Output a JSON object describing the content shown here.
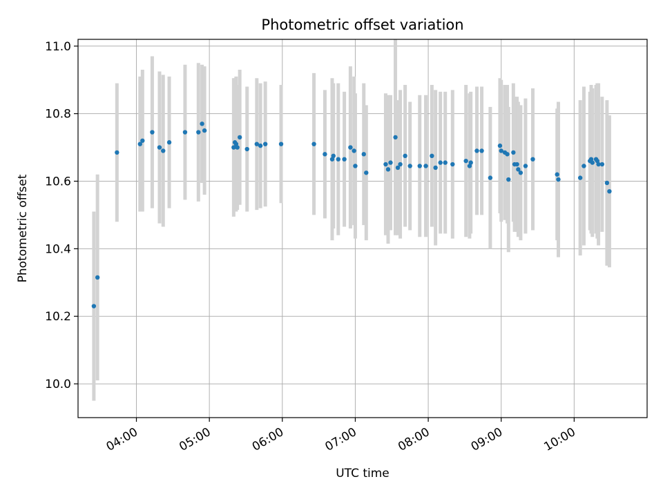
{
  "chart_data": {
    "type": "scatter",
    "title": "Photometric offset variation",
    "xlabel": "UTC time",
    "ylabel": "Photometric offset",
    "x_ticks": [
      "04:00",
      "05:00",
      "06:00",
      "07:00",
      "08:00",
      "09:00",
      "10:00"
    ],
    "y_ticks": [
      "10.0",
      "10.2",
      "10.4",
      "10.6",
      "10.8",
      "11.0"
    ],
    "xlim": [
      "03:12",
      "11:00"
    ],
    "ylim": [
      9.9,
      11.02
    ],
    "grid": true,
    "colors": {
      "point": "#1f77b4",
      "errorbar": "#d3d3d3",
      "grid": "#b0b0b0"
    },
    "series": [
      {
        "x": [
          "03:25",
          "03:28",
          "03:44",
          "04:03",
          "04:05",
          "04:13",
          "04:19",
          "04:22",
          "04:27",
          "04:40",
          "04:51",
          "04:54",
          "04:56",
          "05:20",
          "05:21",
          "05:22",
          "05:23",
          "05:25",
          "05:31",
          "05:39",
          "05:42",
          "05:46",
          "05:59",
          "06:26",
          "06:35",
          "06:41",
          "06:42",
          "06:46",
          "06:51",
          "06:56",
          "06:59",
          "07:00",
          "07:07",
          "07:09",
          "07:25",
          "07:27",
          "07:29",
          "07:33",
          "07:35",
          "07:37",
          "07:41",
          "07:45",
          "07:53",
          "07:58",
          "08:03",
          "08:06",
          "08:10",
          "08:14",
          "08:20",
          "08:31",
          "08:34",
          "08:35",
          "08:40",
          "08:44",
          "08:51",
          "08:59",
          "09:00",
          "09:03",
          "09:05",
          "09:06",
          "09:10",
          "09:11",
          "09:13",
          "09:14",
          "09:16",
          "09:20",
          "09:26",
          "09:46",
          "09:47",
          "10:05",
          "10:08",
          "10:13",
          "10:14",
          "10:15",
          "10:18",
          "10:19",
          "10:20",
          "10:23",
          "10:27",
          "10:29"
        ],
        "y": [
          10.23,
          10.315,
          10.685,
          10.71,
          10.72,
          10.745,
          10.7,
          10.69,
          10.715,
          10.745,
          10.745,
          10.77,
          10.75,
          10.7,
          10.715,
          10.71,
          10.7,
          10.73,
          10.695,
          10.71,
          10.705,
          10.71,
          10.71,
          10.71,
          10.68,
          10.665,
          10.675,
          10.665,
          10.665,
          10.7,
          10.69,
          10.645,
          10.68,
          10.625,
          10.65,
          10.635,
          10.655,
          10.73,
          10.64,
          10.65,
          10.675,
          10.645,
          10.645,
          10.645,
          10.675,
          10.64,
          10.655,
          10.655,
          10.65,
          10.66,
          10.645,
          10.655,
          10.69,
          10.69,
          10.61,
          10.705,
          10.69,
          10.685,
          10.68,
          10.605,
          10.685,
          10.65,
          10.65,
          10.635,
          10.625,
          10.645,
          10.665,
          10.62,
          10.605,
          10.61,
          10.645,
          10.66,
          10.665,
          10.655,
          10.665,
          10.66,
          10.65,
          10.65,
          10.595,
          10.57
        ],
        "yerr": [
          0.28,
          0.305,
          0.205,
          0.2,
          0.21,
          0.225,
          0.225,
          0.225,
          0.195,
          0.2,
          0.205,
          0.175,
          0.19,
          0.205,
          0.19,
          0.2,
          0.185,
          0.2,
          0.185,
          0.195,
          0.185,
          0.185,
          0.175,
          0.21,
          0.19,
          0.24,
          0.215,
          0.225,
          0.2,
          0.24,
          0.22,
          0.215,
          0.21,
          0.2,
          0.21,
          0.22,
          0.2,
          0.29,
          0.2,
          0.22,
          0.21,
          0.19,
          0.21,
          0.21,
          0.21,
          0.23,
          0.21,
          0.21,
          0.22,
          0.225,
          0.215,
          0.21,
          0.19,
          0.19,
          0.21,
          0.2,
          0.21,
          0.2,
          0.205,
          0.215,
          0.205,
          0.2,
          0.2,
          0.2,
          0.2,
          0.2,
          0.21,
          0.195,
          0.23,
          0.23,
          0.235,
          0.205,
          0.22,
          0.22,
          0.22,
          0.23,
          0.24,
          0.2,
          0.245,
          0.225
        ]
      }
    ]
  }
}
